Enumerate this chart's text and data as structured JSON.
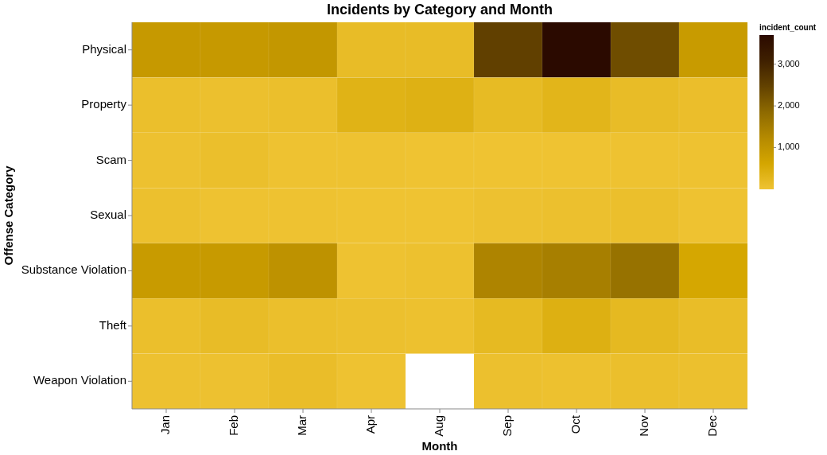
{
  "chart_data": {
    "type": "heatmap",
    "title": "Incidents by Category and Month",
    "xlabel": "Month",
    "ylabel": "Offense Category",
    "clabel": "incident_count",
    "categories": [
      "Jan",
      "Feb",
      "Mar",
      "Apr",
      "Aug",
      "Sep",
      "Oct",
      "Nov",
      "Dec"
    ],
    "y_categories": [
      "Physical",
      "Property",
      "Scam",
      "Sexual",
      "Substance Violation",
      "Theft",
      "Weapon Violation"
    ],
    "cells": [
      [
        900,
        900,
        950,
        150,
        150,
        2500,
        3700,
        2300,
        850
      ],
      [
        80,
        60,
        80,
        350,
        380,
        180,
        300,
        150,
        100
      ],
      [
        40,
        80,
        30,
        20,
        10,
        10,
        10,
        30,
        20
      ],
      [
        60,
        30,
        30,
        10,
        10,
        40,
        60,
        80,
        30
      ],
      [
        850,
        880,
        1050,
        20,
        50,
        1350,
        1450,
        1700,
        600
      ],
      [
        80,
        150,
        90,
        60,
        50,
        200,
        400,
        220,
        130
      ],
      [
        40,
        40,
        120,
        30,
        null,
        60,
        50,
        80,
        60
      ]
    ],
    "clim": [
      0,
      3700
    ],
    "cticks": [
      {
        "value": 1000,
        "label": "1,000"
      },
      {
        "value": 2000,
        "label": "2,000"
      },
      {
        "value": 3000,
        "label": "3,000"
      }
    ]
  }
}
